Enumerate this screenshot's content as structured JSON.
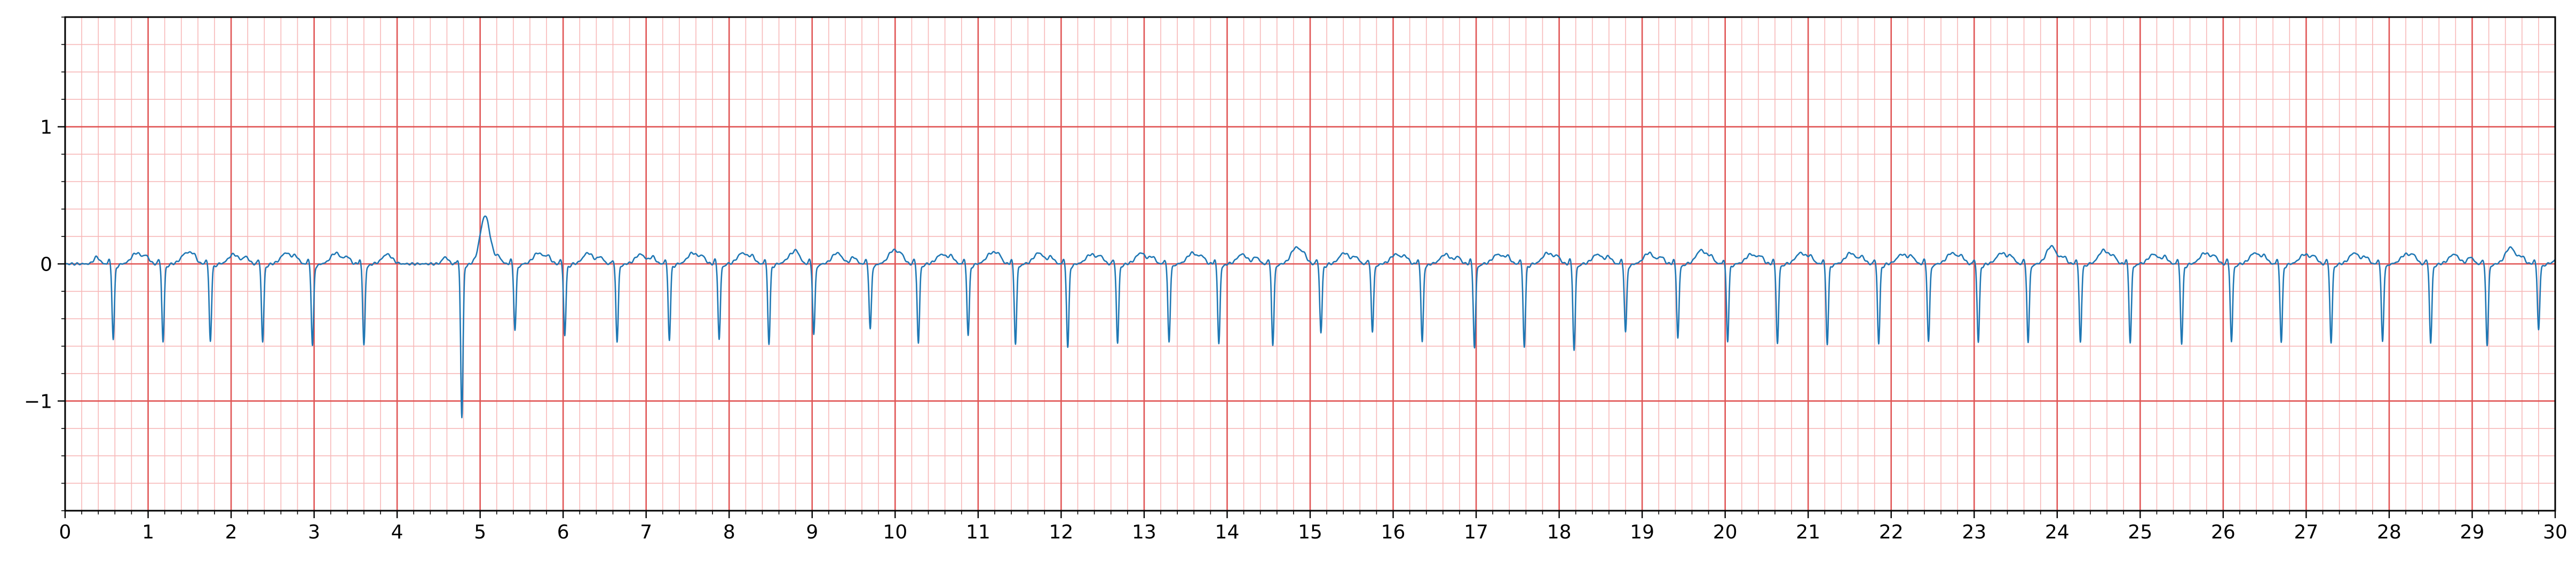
{
  "chart_data": {
    "type": "line",
    "title": "",
    "xlabel": "",
    "ylabel": "",
    "xlim": [
      0,
      30
    ],
    "ylim": [
      -1.8,
      1.8
    ],
    "x_ticks": [
      0,
      1,
      2,
      3,
      4,
      5,
      6,
      7,
      8,
      9,
      10,
      11,
      12,
      13,
      14,
      15,
      16,
      17,
      18,
      19,
      20,
      21,
      22,
      23,
      24,
      25,
      26,
      27,
      28,
      29,
      30
    ],
    "x_tick_labels": [
      "0",
      "1",
      "2",
      "3",
      "4",
      "5",
      "6",
      "7",
      "8",
      "9",
      "10",
      "11",
      "12",
      "13",
      "14",
      "15",
      "16",
      "17",
      "18",
      "19",
      "20",
      "21",
      "22",
      "23",
      "24",
      "25",
      "26",
      "27",
      "28",
      "29",
      "30"
    ],
    "y_ticks": [
      -1,
      0,
      1
    ],
    "y_tick_labels": [
      "−1",
      "0",
      "1"
    ],
    "grid": true,
    "major_grid": {
      "x_step": 1,
      "y_step": 1
    },
    "minor_grid": {
      "x_step": 0.2,
      "y_step": 0.2
    },
    "legend": "none",
    "colors": {
      "trace": "#1f77b4",
      "major_grid": "#e05555",
      "minor_grid": "#f7b8b8",
      "axes": "#000000"
    },
    "series": [
      {
        "name": "",
        "beat_times": [
          0.58,
          1.18,
          1.75,
          2.38,
          2.98,
          3.6,
          4.78,
          5.42,
          6.02,
          6.65,
          7.28,
          7.88,
          8.48,
          9.02,
          9.7,
          10.28,
          10.88,
          11.45,
          12.08,
          12.68,
          13.3,
          13.9,
          14.55,
          15.13,
          15.75,
          16.35,
          16.98,
          17.58,
          18.18,
          18.8,
          19.43,
          20.03,
          20.63,
          21.23,
          21.85,
          22.45,
          23.05,
          23.65,
          24.28,
          24.88,
          25.5,
          26.1,
          26.7,
          27.3,
          27.92,
          28.5,
          29.18,
          29.8
        ],
        "r_amplitude": [
          -0.55,
          -0.57,
          -0.56,
          -0.57,
          -0.6,
          -0.59,
          -1.12,
          -0.48,
          -0.52,
          -0.57,
          -0.55,
          -0.55,
          -0.58,
          -0.52,
          -0.48,
          -0.58,
          -0.52,
          -0.58,
          -0.61,
          -0.58,
          -0.57,
          -0.58,
          -0.6,
          -0.5,
          -0.5,
          -0.57,
          -0.61,
          -0.6,
          -0.63,
          -0.5,
          -0.54,
          -0.56,
          -0.58,
          -0.58,
          -0.58,
          -0.57,
          -0.57,
          -0.58,
          -0.57,
          -0.57,
          -0.58,
          -0.57,
          -0.57,
          -0.58,
          -0.57,
          -0.58,
          -0.6,
          -0.48
        ],
        "t_amplitude": [
          0.08,
          0.08,
          0.07,
          0.08,
          0.08,
          0.07,
          0.35,
          0.08,
          0.08,
          0.07,
          0.08,
          0.08,
          0.07,
          0.08,
          0.1,
          0.07,
          0.08,
          0.08,
          0.07,
          0.08,
          0.08,
          0.07,
          0.12,
          0.08,
          0.07,
          0.07,
          0.07,
          0.08,
          0.07,
          0.08,
          0.1,
          0.07,
          0.08,
          0.08,
          0.07,
          0.08,
          0.08,
          0.13,
          0.1,
          0.07,
          0.08,
          0.08,
          0.07,
          0.08,
          0.07,
          0.07,
          0.12,
          0.08
        ],
        "baseline": 0
      }
    ]
  }
}
